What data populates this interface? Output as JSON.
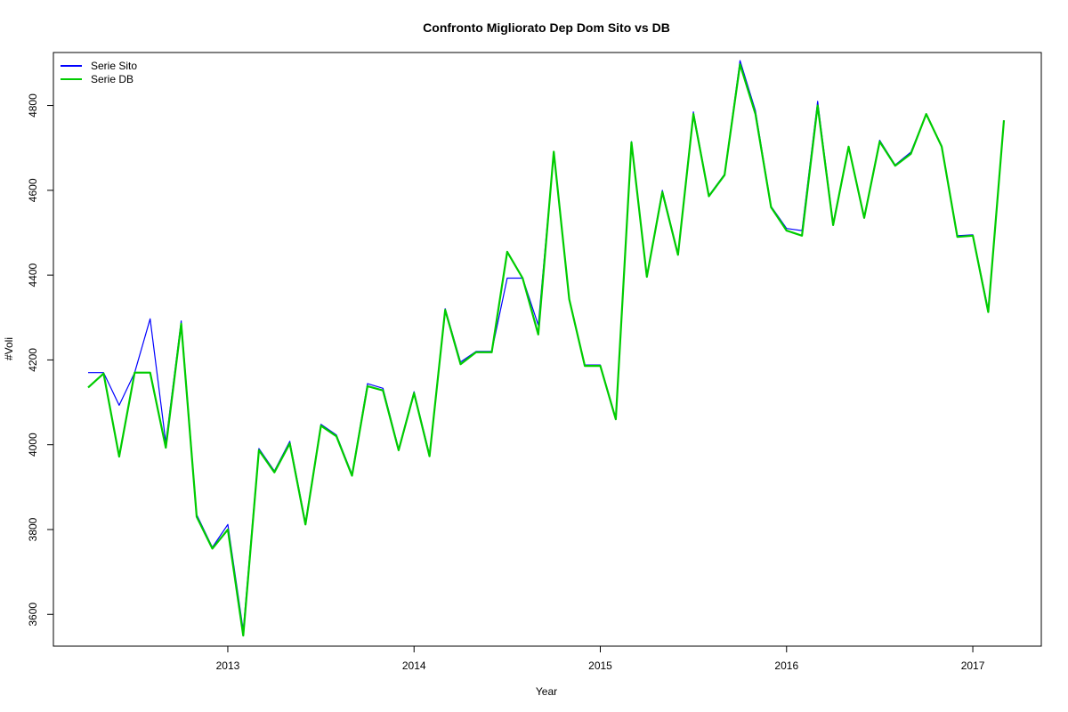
{
  "chart_data": {
    "type": "line",
    "title": "Confronto Migliorato Dep Dom Sito vs DB",
    "xlabel": "Year",
    "ylabel": "#Voli",
    "xlim": [
      2012.25,
      2017.167
    ],
    "ylim": [
      3525,
      4925
    ],
    "x_ticks": [
      2013,
      2014,
      2015,
      2016,
      2017
    ],
    "x_tick_labels": [
      "2013",
      "2014",
      "2015",
      "2016",
      "2017"
    ],
    "y_ticks": [
      3600,
      3800,
      4000,
      4200,
      4400,
      4600,
      4800
    ],
    "y_tick_labels": [
      "3600",
      "3800",
      "4000",
      "4200",
      "4400",
      "4600",
      "4800"
    ],
    "grid": false,
    "legend_position": "top-left",
    "x": [
      2012.25,
      2012.333,
      2012.417,
      2012.5,
      2012.583,
      2012.667,
      2012.75,
      2012.833,
      2012.917,
      2013.0,
      2013.083,
      2013.167,
      2013.25,
      2013.333,
      2013.417,
      2013.5,
      2013.583,
      2013.667,
      2013.75,
      2013.833,
      2013.917,
      2014.0,
      2014.083,
      2014.167,
      2014.25,
      2014.333,
      2014.417,
      2014.5,
      2014.583,
      2014.667,
      2014.75,
      2014.833,
      2014.917,
      2015.0,
      2015.083,
      2015.167,
      2015.25,
      2015.333,
      2015.417,
      2015.5,
      2015.583,
      2015.667,
      2015.75,
      2015.833,
      2015.917,
      2016.0,
      2016.083,
      2016.167,
      2016.25,
      2016.333,
      2016.417,
      2016.5,
      2016.583,
      2016.667,
      2016.75,
      2016.833,
      2016.917,
      2017.0,
      2017.083,
      2017.167
    ],
    "series": [
      {
        "name": "Serie Sito",
        "color": "#0000ff",
        "values": [
          4170,
          4170,
          4093,
          4170,
          4297,
          4005,
          4292,
          3835,
          3758,
          3812,
          3562,
          3991,
          3938,
          4008,
          3816,
          4048,
          4023,
          3930,
          4144,
          4133,
          3990,
          4125,
          3977,
          4321,
          4195,
          4220,
          4220,
          4393,
          4393,
          4282,
          4689,
          4343,
          4188,
          4188,
          4062,
          4715,
          4397,
          4600,
          4450,
          4785,
          4588,
          4638,
          4906,
          4788,
          4562,
          4510,
          4505,
          4810,
          4522,
          4703,
          4537,
          4718,
          4660,
          4690,
          4780,
          4705,
          4493,
          4495,
          4318,
          4765
        ]
      },
      {
        "name": "Serie DB",
        "color": "#00cc00",
        "values": [
          4135,
          4168,
          3972,
          4170,
          4170,
          3993,
          4285,
          3830,
          3755,
          3800,
          3550,
          3987,
          3935,
          4003,
          3812,
          4045,
          4020,
          3927,
          4138,
          4128,
          3987,
          4122,
          3973,
          4318,
          4190,
          4218,
          4218,
          4455,
          4393,
          4260,
          4691,
          4343,
          4186,
          4186,
          4060,
          4713,
          4396,
          4596,
          4448,
          4780,
          4586,
          4636,
          4897,
          4780,
          4560,
          4505,
          4493,
          4800,
          4518,
          4703,
          4535,
          4715,
          4658,
          4686,
          4780,
          4703,
          4490,
          4493,
          4313,
          4765
        ]
      }
    ]
  }
}
